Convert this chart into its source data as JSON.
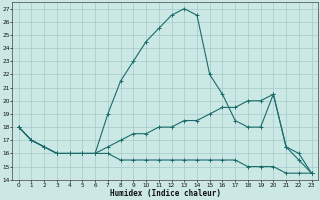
{
  "xlabel": "Humidex (Indice chaleur)",
  "background_color": "#cce8e5",
  "grid_color": "#aacfcc",
  "line_color": "#1a6b6b",
  "xlim": [
    -0.5,
    23.5
  ],
  "ylim": [
    14,
    27.5
  ],
  "yticks": [
    14,
    15,
    16,
    17,
    18,
    19,
    20,
    21,
    22,
    23,
    24,
    25,
    26,
    27
  ],
  "xticks": [
    0,
    1,
    2,
    3,
    4,
    5,
    6,
    7,
    8,
    9,
    10,
    11,
    12,
    13,
    14,
    15,
    16,
    17,
    18,
    19,
    20,
    21,
    22,
    23
  ],
  "curve1_x": [
    0,
    1,
    2,
    3,
    4,
    5,
    6,
    7,
    8,
    9,
    10,
    11,
    12,
    13,
    14,
    15,
    16,
    17,
    18,
    19,
    20,
    21,
    22,
    23
  ],
  "curve1_y": [
    18.0,
    17.0,
    16.5,
    16.0,
    16.0,
    16.0,
    16.0,
    19.0,
    21.5,
    23.0,
    24.5,
    25.5,
    26.5,
    27.0,
    26.5,
    22.0,
    20.5,
    18.5,
    18.0,
    18.0,
    20.5,
    16.5,
    16.0,
    14.5
  ],
  "curve2_x": [
    0,
    1,
    2,
    3,
    4,
    5,
    6,
    7,
    8,
    9,
    10,
    11,
    12,
    13,
    14,
    15,
    16,
    17,
    18,
    19,
    20,
    21,
    22,
    23
  ],
  "curve2_y": [
    18.0,
    17.0,
    16.5,
    16.0,
    16.0,
    16.0,
    16.0,
    16.5,
    17.0,
    17.5,
    17.5,
    18.0,
    18.0,
    18.5,
    18.5,
    19.0,
    19.5,
    19.5,
    20.0,
    20.0,
    20.5,
    16.5,
    15.5,
    14.5
  ],
  "curve3_x": [
    0,
    1,
    2,
    3,
    4,
    5,
    6,
    7,
    8,
    9,
    10,
    11,
    12,
    13,
    14,
    15,
    16,
    17,
    18,
    19,
    20,
    21,
    22,
    23
  ],
  "curve3_y": [
    18.0,
    17.0,
    16.5,
    16.0,
    16.0,
    16.0,
    16.0,
    16.0,
    15.5,
    15.5,
    15.5,
    15.5,
    15.5,
    15.5,
    15.5,
    15.5,
    15.5,
    15.5,
    15.0,
    15.0,
    15.0,
    14.5,
    14.5,
    14.5
  ],
  "xlabel_fontsize": 5.5,
  "tick_fontsize": 4.2,
  "linewidth": 0.8,
  "markersize": 3.0
}
